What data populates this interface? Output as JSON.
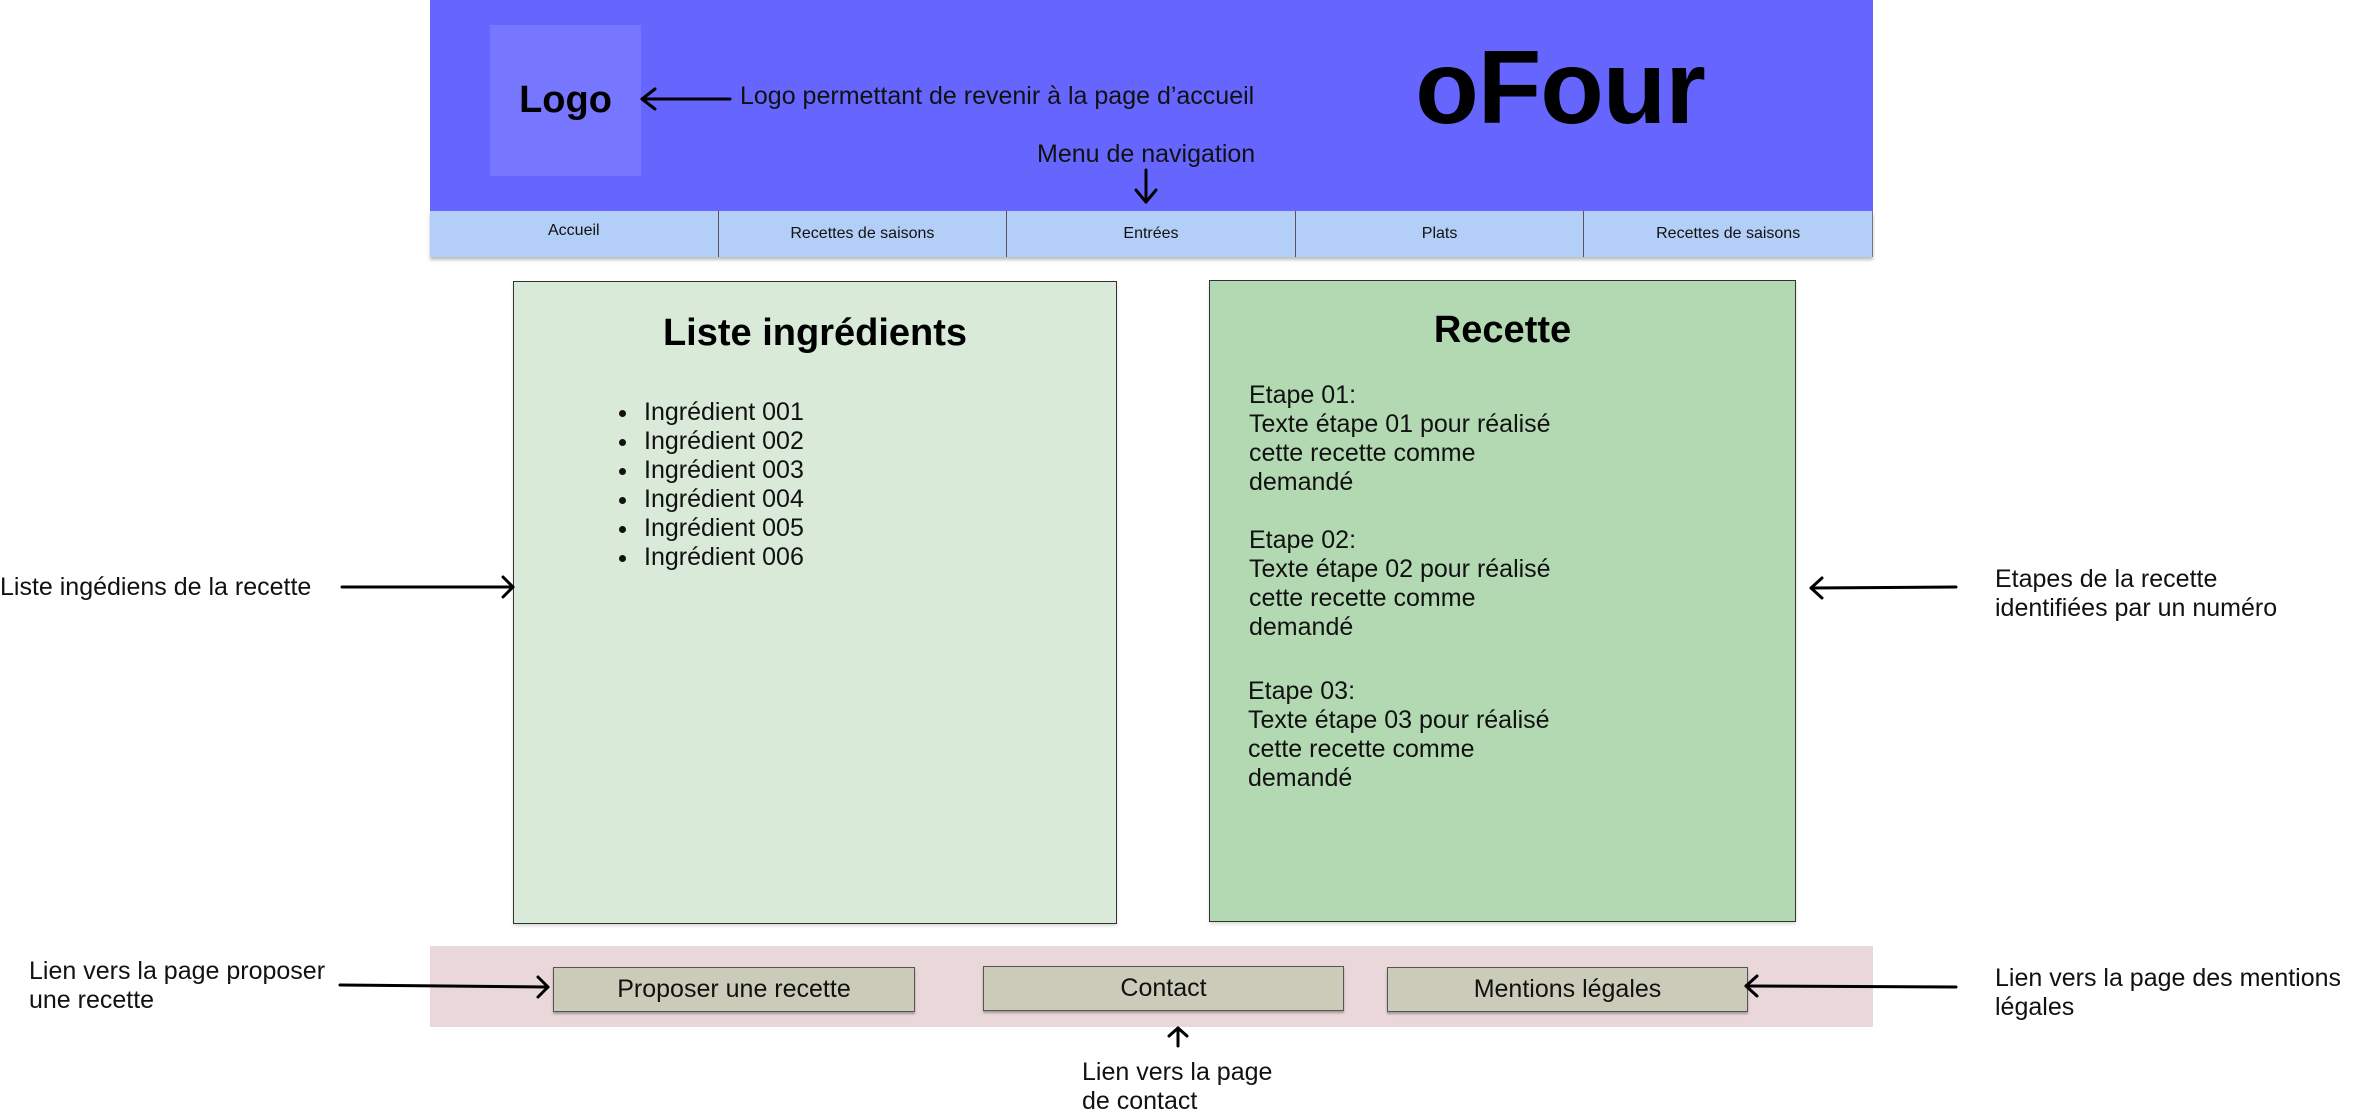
{
  "header": {
    "logo_label": "Logo",
    "brand": "oFour",
    "color": "#6666ff"
  },
  "nav": {
    "items": [
      {
        "label": "Accueil"
      },
      {
        "label": "Recettes de saisons"
      },
      {
        "label": "Entrées"
      },
      {
        "label": "Plats"
      },
      {
        "label": "Recettes de saisons"
      }
    ],
    "color": "#b3cff8"
  },
  "ingredients": {
    "title": "Liste ingrédients",
    "items": [
      "Ingrédient 001",
      "Ingrédient 002",
      "Ingrédient 003",
      "Ingrédient 004",
      "Ingrédient 005",
      "Ingrédient 006"
    ],
    "color": "#d9ead9"
  },
  "recipe": {
    "title": "Recette",
    "steps": [
      {
        "label": "Etape 01:",
        "lines": [
          "Texte étape 01 pour réalisé",
          "cette recette comme",
          "demandé"
        ]
      },
      {
        "label": "Etape 02:",
        "lines": [
          "Texte étape 02 pour réalisé",
          "cette recette comme",
          "demandé"
        ]
      },
      {
        "label": "Etape 03:",
        "lines": [
          "Texte étape 03 pour réalisé",
          "cette recette comme",
          "demandé"
        ]
      }
    ],
    "color": "#b3d9b3"
  },
  "footer": {
    "buttons": [
      {
        "label": "Proposer une recette"
      },
      {
        "label": "Contact"
      },
      {
        "label": "Mentions légales"
      }
    ],
    "color": "#ead7da"
  },
  "annotations": {
    "logo": "Logo permettant de revenir à la page d’accueil",
    "nav": "Menu de navigation",
    "ingredients": "Liste ingédiens de la recette",
    "steps_line1": "Etapes de la recette",
    "steps_line2": "identifiées par un numéro",
    "propose_line1": "Lien vers la page proposer",
    "propose_line2": "une recette",
    "legal_line1": "Lien vers la page des mentions",
    "legal_line2": "légales",
    "contact_line1": "Lien vers la page",
    "contact_line2": "de contact"
  }
}
